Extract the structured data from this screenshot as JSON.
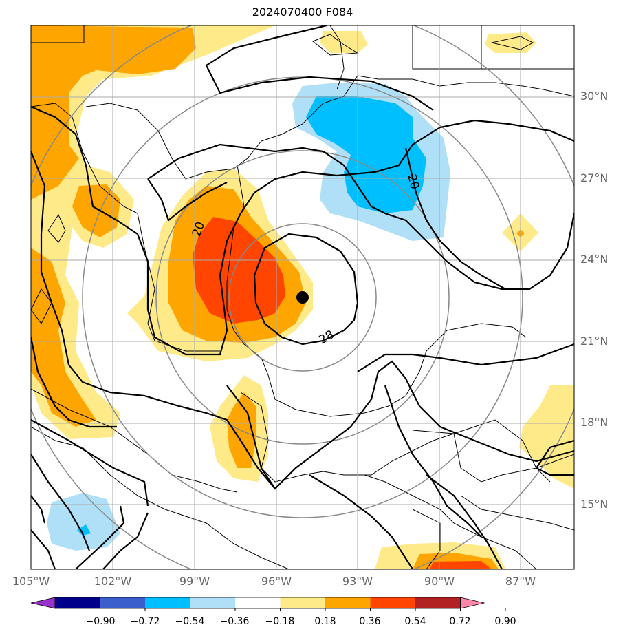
{
  "title": "2024070400 F084",
  "lat_labels": [
    "30°N",
    "27°N",
    "24°N",
    "21°N",
    "18°N",
    "15°N"
  ],
  "lon_labels": [
    "105°W",
    "102°W",
    "99°W",
    "96°W",
    "93°W",
    "90°W",
    "87°W"
  ],
  "contour_labels": [
    "20",
    "20",
    "28"
  ],
  "colorbar": {
    "labels": [
      "−0.90",
      "−0.72",
      "−0.54",
      "−0.36",
      "−0.18",
      "0.18",
      "0.36",
      "0.54",
      "0.72",
      "0.90"
    ],
    "colors": [
      "#9932cc",
      "#00008b",
      "#3a5fcd",
      "#00bfff",
      "#b0e0f8",
      "#ffffff",
      "#ffea8a",
      "#ffa500",
      "#ff4500",
      "#b22222",
      "#ff88aa"
    ]
  },
  "chart_data": {
    "type": "heatmap",
    "title": "2024070400 F084",
    "lon_range": [
      -105,
      -85.5
    ],
    "lat_range": [
      12.7,
      32.7
    ],
    "lon_ticks": [
      -105,
      -102,
      -99,
      -96,
      -93,
      -90,
      -87
    ],
    "lat_ticks": [
      30,
      27,
      24,
      21,
      18,
      15
    ],
    "levels": [
      -0.9,
      -0.72,
      -0.54,
      -0.36,
      -0.18,
      0.18,
      0.36,
      0.54,
      0.72,
      0.9
    ],
    "storm_center": {
      "lon": -95.0,
      "lat": 22.6
    },
    "contours": [
      {
        "value": 20
      },
      {
        "value": 20
      },
      {
        "value": 28
      }
    ]
  }
}
